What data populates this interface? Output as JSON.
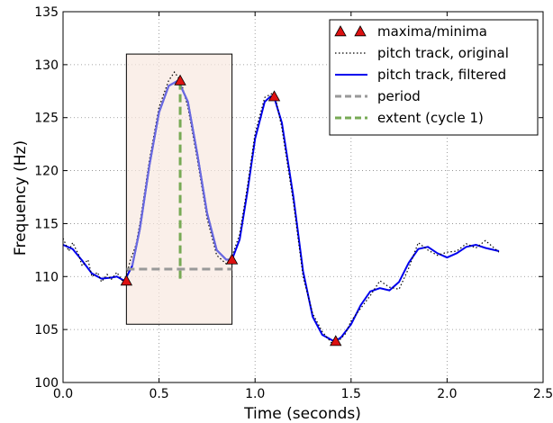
{
  "chart_data": {
    "type": "line",
    "title": "",
    "xlabel": "Time (seconds)",
    "ylabel": "Frequency (Hz)",
    "xlim": [
      0.0,
      2.5
    ],
    "ylim": [
      100,
      135
    ],
    "x_ticks": [
      0.0,
      0.5,
      1.0,
      1.5,
      2.0,
      2.5
    ],
    "x_tick_labels": [
      "0.0",
      "0.5",
      "1.0",
      "1.5",
      "2.0",
      "2.5"
    ],
    "y_ticks": [
      100,
      105,
      110,
      115,
      120,
      125,
      130,
      135
    ],
    "y_tick_labels": [
      "100",
      "105",
      "110",
      "115",
      "120",
      "125",
      "130",
      "135"
    ],
    "grid": true,
    "legend_position": "top-right",
    "legend": [
      {
        "label": "maxima/minima",
        "key": "extrema"
      },
      {
        "label": "pitch track, original",
        "key": "original"
      },
      {
        "label": "pitch track, filtered",
        "key": "filtered"
      },
      {
        "label": "period",
        "key": "period"
      },
      {
        "label": "extent (cycle 1)",
        "key": "extent"
      }
    ],
    "colors": {
      "filtered": "#0000ee",
      "filtered_highlight": "#6a6ae0",
      "original": "#000000",
      "extrema_fill": "#dd1111",
      "period": "#999999",
      "extent": "#77aa55",
      "cycle_box_fill": "#f8e8e0"
    },
    "series": [
      {
        "name": "pitch track, filtered",
        "x": [
          0.0,
          0.05,
          0.1,
          0.15,
          0.2,
          0.25,
          0.28,
          0.32,
          0.36,
          0.4,
          0.45,
          0.5,
          0.55,
          0.6,
          0.65,
          0.7,
          0.75,
          0.8,
          0.85,
          0.88,
          0.92,
          0.96,
          1.0,
          1.05,
          1.08,
          1.1,
          1.14,
          1.2,
          1.25,
          1.3,
          1.35,
          1.4,
          1.42,
          1.45,
          1.5,
          1.55,
          1.6,
          1.65,
          1.7,
          1.75,
          1.8,
          1.85,
          1.9,
          1.95,
          2.0,
          2.05,
          2.1,
          2.15,
          2.2,
          2.27
        ],
        "y": [
          113.0,
          112.6,
          111.5,
          110.3,
          109.8,
          109.9,
          110.0,
          109.6,
          111.0,
          114.5,
          120.5,
          125.5,
          128.0,
          128.5,
          126.5,
          121.5,
          116.0,
          112.5,
          111.6,
          111.6,
          113.5,
          118.0,
          123.0,
          126.5,
          127.0,
          126.9,
          124.5,
          117.5,
          110.5,
          106.2,
          104.5,
          104.0,
          103.9,
          104.3,
          105.5,
          107.3,
          108.6,
          108.9,
          108.7,
          109.5,
          111.3,
          112.6,
          112.8,
          112.2,
          111.8,
          112.2,
          112.8,
          113.0,
          112.7,
          112.4
        ]
      },
      {
        "name": "pitch track, original",
        "x": [
          0.0,
          0.03,
          0.05,
          0.08,
          0.1,
          0.13,
          0.15,
          0.18,
          0.2,
          0.23,
          0.25,
          0.28,
          0.32,
          0.35,
          0.38,
          0.4,
          0.45,
          0.5,
          0.55,
          0.58,
          0.6,
          0.62,
          0.65,
          0.7,
          0.75,
          0.8,
          0.85,
          0.88,
          0.92,
          0.96,
          1.0,
          1.05,
          1.1,
          1.14,
          1.2,
          1.25,
          1.3,
          1.35,
          1.4,
          1.43,
          1.47,
          1.5,
          1.55,
          1.6,
          1.65,
          1.7,
          1.75,
          1.8,
          1.85,
          1.9,
          1.95,
          2.0,
          2.05,
          2.1,
          2.15,
          2.2,
          2.27
        ],
        "y": [
          113.6,
          112.4,
          113.2,
          112.1,
          111.0,
          111.6,
          110.0,
          110.4,
          109.5,
          110.2,
          109.7,
          110.4,
          109.3,
          111.5,
          113.0,
          115.0,
          121.0,
          126.0,
          128.5,
          129.3,
          128.8,
          128.0,
          126.0,
          121.0,
          115.5,
          112.0,
          111.2,
          111.9,
          114.0,
          118.5,
          123.5,
          126.9,
          127.4,
          124.0,
          117.0,
          110.0,
          106.5,
          104.8,
          103.7,
          103.8,
          104.6,
          105.8,
          107.0,
          108.2,
          109.6,
          109.0,
          108.8,
          110.8,
          113.2,
          112.5,
          112.0,
          112.3,
          112.4,
          113.1,
          112.7,
          113.4,
          112.3
        ]
      }
    ],
    "extrema": [
      {
        "x": 0.33,
        "y": 109.6
      },
      {
        "x": 0.61,
        "y": 128.5
      },
      {
        "x": 0.88,
        "y": 111.6
      },
      {
        "x": 1.1,
        "y": 127.0
      },
      {
        "x": 1.42,
        "y": 103.9
      }
    ],
    "cycle_box": {
      "x0": 0.33,
      "x1": 0.88,
      "y0": 105.5,
      "y1": 131.0
    },
    "period_line": {
      "x0": 0.33,
      "x1": 0.88,
      "y": 110.7
    },
    "extent_line": {
      "x": 0.61,
      "y0": 109.8,
      "y1": 128.5
    }
  }
}
